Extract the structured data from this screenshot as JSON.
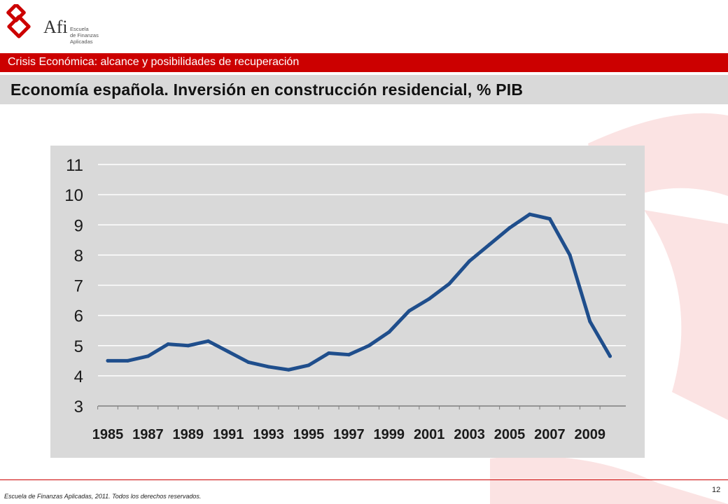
{
  "header": {
    "logo_name": "Afi",
    "logo_sub": [
      "Escuela",
      "de Finanzas",
      "Aplicadas"
    ],
    "section": "Crisis Económica: alcance y posibilidades de recuperación",
    "title": "Economía española. Inversión en construcción residencial, % PIB"
  },
  "colors": {
    "accent": "#cc0000",
    "title_band": "#d9d9d9",
    "series": "#1f4e8c",
    "decoration": "#fbe3e3"
  },
  "chart_data": {
    "type": "line",
    "title": "",
    "xlabel": "",
    "ylabel": "",
    "ylim": [
      3,
      11
    ],
    "yticks": [
      "3",
      "4",
      "5",
      "6",
      "7",
      "8",
      "9",
      "10",
      "11"
    ],
    "xlim": [
      1985,
      2010
    ],
    "xticks": [
      "1985",
      "1987",
      "1989",
      "1991",
      "1993",
      "1995",
      "1997",
      "1999",
      "2001",
      "2003",
      "2005",
      "2007",
      "2009"
    ],
    "grid": true,
    "legend": "none",
    "series": [
      {
        "x": [
          1985,
          1986,
          1987,
          1988,
          1989,
          1990,
          1991,
          1992,
          1993,
          1994,
          1995,
          1996,
          1997,
          1998,
          1999,
          2000,
          2001,
          2002,
          2003,
          2004,
          2005,
          2006,
          2007,
          2008,
          2009,
          2010
        ],
        "values": [
          4.5,
          4.5,
          4.65,
          5.05,
          5.0,
          5.15,
          4.8,
          4.45,
          4.3,
          4.2,
          4.35,
          4.75,
          4.7,
          5.0,
          5.45,
          6.15,
          6.55,
          7.05,
          7.8,
          8.35,
          8.9,
          9.35,
          9.2,
          8.0,
          5.8,
          4.65
        ]
      }
    ]
  },
  "footer": {
    "copyright": "Escuela de Finanzas Aplicadas, 2011. Todos los derechos reservados.",
    "page": "12"
  }
}
